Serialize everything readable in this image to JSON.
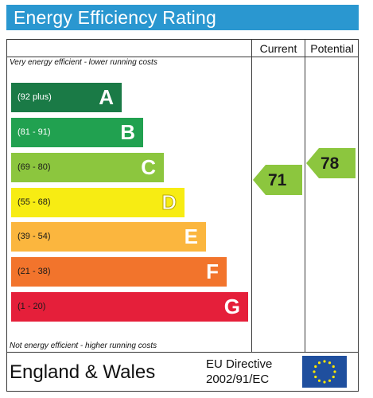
{
  "title": "Energy Efficiency Rating",
  "columns": {
    "current": "Current",
    "potential": "Potential"
  },
  "notes": {
    "top": "Very energy efficient - lower running costs",
    "bottom": "Not energy efficient - higher running costs"
  },
  "bands": [
    {
      "range": "(92 plus)",
      "letter": "A",
      "color": "#1a7a46"
    },
    {
      "range": "(81 - 91)",
      "letter": "B",
      "color": "#21a150"
    },
    {
      "range": "(69 - 80)",
      "letter": "C",
      "color": "#8cc63e"
    },
    {
      "range": "(55 - 68)",
      "letter": "D",
      "color": "#f7ec13"
    },
    {
      "range": "(39 - 54)",
      "letter": "E",
      "color": "#fbb63e"
    },
    {
      "range": "(21 - 38)",
      "letter": "F",
      "color": "#f2742c"
    },
    {
      "range": "(1 - 20)",
      "letter": "G",
      "color": "#e51f3a"
    }
  ],
  "ratings": {
    "current": {
      "value": "71",
      "band": "C",
      "color": "#8cc63e"
    },
    "potential": {
      "value": "78",
      "band": "C",
      "color": "#8cc63e"
    }
  },
  "footer": {
    "region": "England & Wales",
    "directive_line1": "EU Directive",
    "directive_line2": "2002/91/EC"
  },
  "colors": {
    "title_bar": "#2a97d0",
    "eu_flag_blue": "#1f4f9e",
    "eu_star_yellow": "#ffe600"
  }
}
